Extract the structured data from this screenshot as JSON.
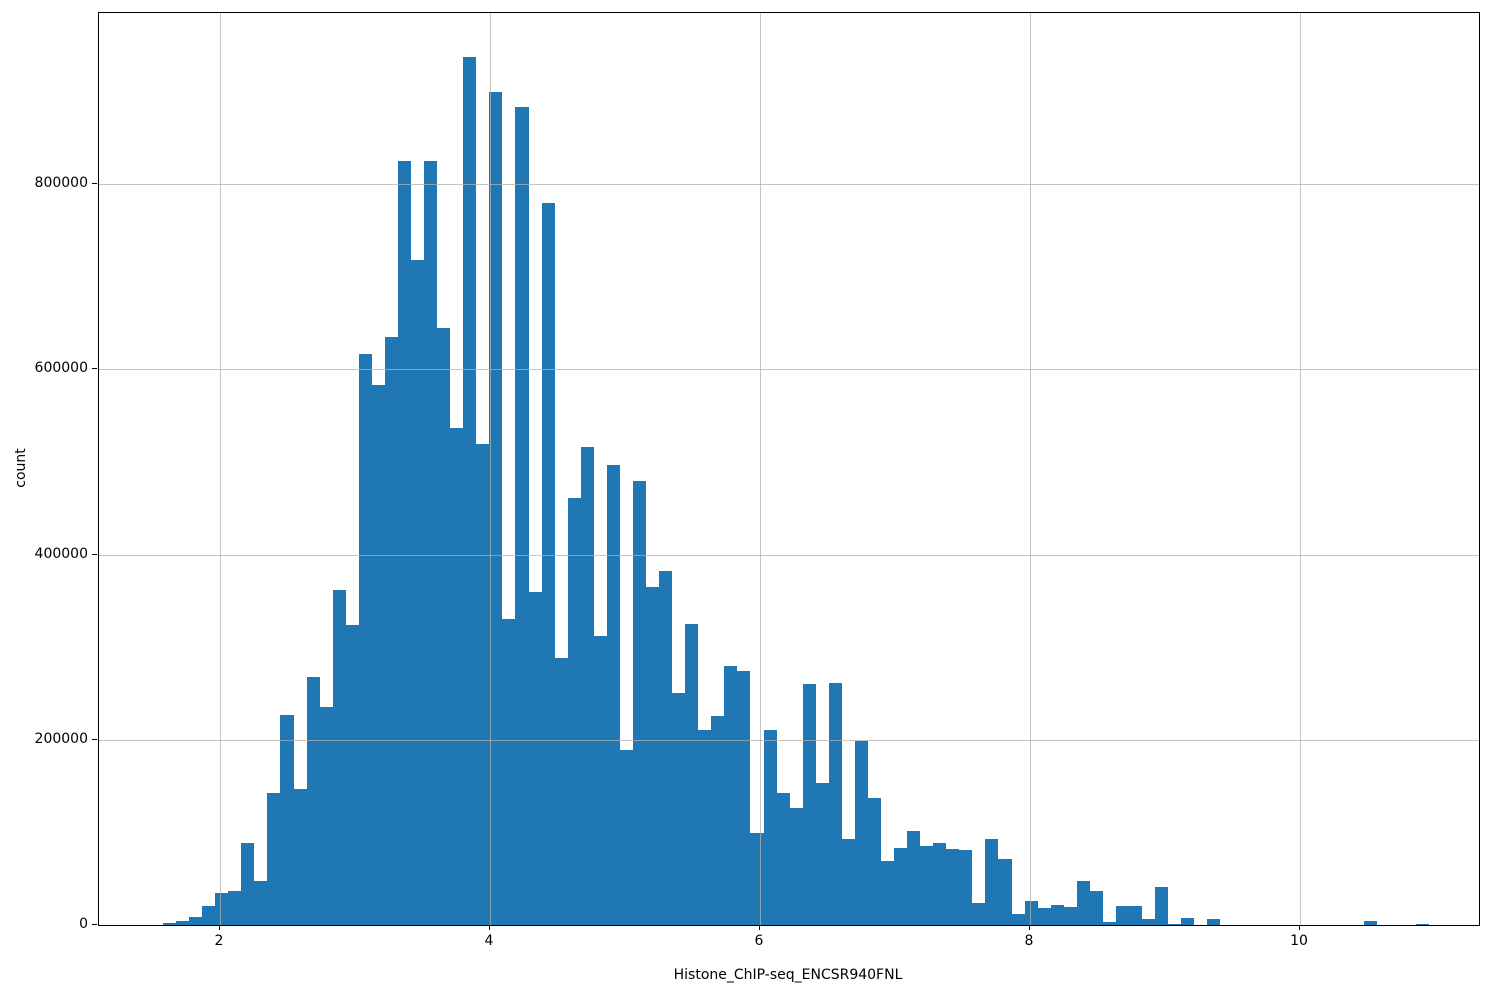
{
  "figure": {
    "background": "#ffffff"
  },
  "chart_data": {
    "type": "bar",
    "subtype": "histogram",
    "title": "",
    "xlabel": "Histone_ChIP-seq_ENCSR940FNL",
    "ylabel": "count",
    "legend_position": "none",
    "grid": true,
    "bar_color": "#1f77b4",
    "grid_color": "#b0b0b0",
    "axis_color": "#000000",
    "xlim": [
      1.104,
      11.326
    ],
    "ylim": [
      0,
      985000
    ],
    "x_ticks": [
      2,
      4,
      6,
      8,
      10
    ],
    "x_tick_labels": [
      "2",
      "4",
      "6",
      "8",
      "10"
    ],
    "y_ticks": [
      0,
      200000,
      400000,
      600000,
      800000
    ],
    "y_tick_labels": [
      "0",
      "200000",
      "400000",
      "600000",
      "800000"
    ],
    "bin_start": 1.578,
    "bin_width": 0.0967,
    "counts": [
      2000,
      4000,
      9000,
      20000,
      35000,
      37000,
      89000,
      47000,
      143000,
      227000,
      147000,
      268000,
      235000,
      362000,
      324000,
      617000,
      583000,
      635000,
      825000,
      718000,
      825000,
      645000,
      537000,
      937000,
      520000,
      900000,
      331000,
      884000,
      360000,
      780000,
      288000,
      461000,
      516000,
      312000,
      497000,
      189000,
      480000,
      365000,
      382000,
      251000,
      325000,
      211000,
      226000,
      280000,
      274000,
      99000,
      211000,
      143000,
      126000,
      260000,
      153000,
      261000,
      93000,
      199000,
      137000,
      69000,
      83000,
      102000,
      85000,
      89000,
      82000,
      81000,
      24000,
      93000,
      71000,
      12000,
      26000,
      18000,
      22000,
      19000,
      48000,
      37000,
      3000,
      20000,
      21000,
      6000,
      41000,
      1000,
      8000,
      0,
      6000,
      0,
      0,
      0,
      0,
      0,
      0,
      0,
      0,
      0,
      0,
      0,
      4000,
      0,
      0,
      0,
      1500
    ]
  }
}
